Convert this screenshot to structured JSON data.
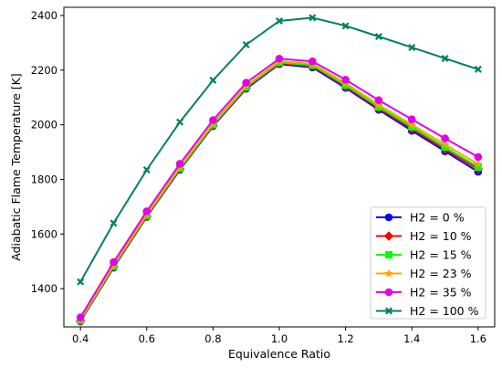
{
  "chart_data": {
    "type": "line",
    "xlabel": "Equivalence Ratio",
    "ylabel": "Adiabatic Flame Temperature [K]",
    "xlim": [
      0.35,
      1.65
    ],
    "ylim": [
      1260,
      2430
    ],
    "xticks": [
      0.4,
      0.6,
      0.8,
      1.0,
      1.2,
      1.4,
      1.6
    ],
    "xtick_labels": [
      "0.4",
      "0.6",
      "0.8",
      "1.0",
      "1.2",
      "1.4",
      "1.6"
    ],
    "yticks": [
      1400,
      1600,
      1800,
      2000,
      2200,
      2400
    ],
    "ytick_labels": [
      "1400",
      "1600",
      "1800",
      "2000",
      "2200",
      "2400"
    ],
    "grid": false,
    "legend_position": "lower-right",
    "x": [
      0.4,
      0.5,
      0.6,
      0.7,
      0.8,
      0.9,
      1.0,
      1.1,
      1.2,
      1.3,
      1.4,
      1.5,
      1.6
    ],
    "series": [
      {
        "name": "H2 = 0 %",
        "color": "#0000ff",
        "marker": "circle",
        "values": [
          1280,
          1477,
          1663,
          1835,
          1995,
          2132,
          2222,
          2210,
          2135,
          2055,
          1978,
          1903,
          1828
        ]
      },
      {
        "name": "H2 = 10 %",
        "color": "#ff0000",
        "marker": "diamond",
        "values": [
          1282,
          1480,
          1665,
          1838,
          1998,
          2135,
          2225,
          2215,
          2140,
          2060,
          1985,
          1910,
          1838
        ]
      },
      {
        "name": "H2 = 15 %",
        "color": "#00ff00",
        "marker": "square",
        "values": [
          1284,
          1482,
          1668,
          1840,
          2000,
          2138,
          2228,
          2218,
          2145,
          2065,
          1992,
          1918,
          1845
        ]
      },
      {
        "name": "H2 = 23 %",
        "color": "#ffa500",
        "marker": "star",
        "values": [
          1287,
          1486,
          1672,
          1845,
          2005,
          2143,
          2233,
          2223,
          2152,
          2073,
          2000,
          1928,
          1856
        ]
      },
      {
        "name": "H2 = 35 %",
        "color": "#e600e6",
        "marker": "circle",
        "values": [
          1295,
          1497,
          1683,
          1857,
          2017,
          2154,
          2242,
          2232,
          2165,
          2090,
          2020,
          1950,
          1882
        ]
      },
      {
        "name": "H2 = 100 %",
        "color": "#008060",
        "marker": "x",
        "values": [
          1425,
          1640,
          1835,
          2010,
          2163,
          2293,
          2380,
          2392,
          2362,
          2323,
          2283,
          2243,
          2203
        ]
      }
    ]
  }
}
